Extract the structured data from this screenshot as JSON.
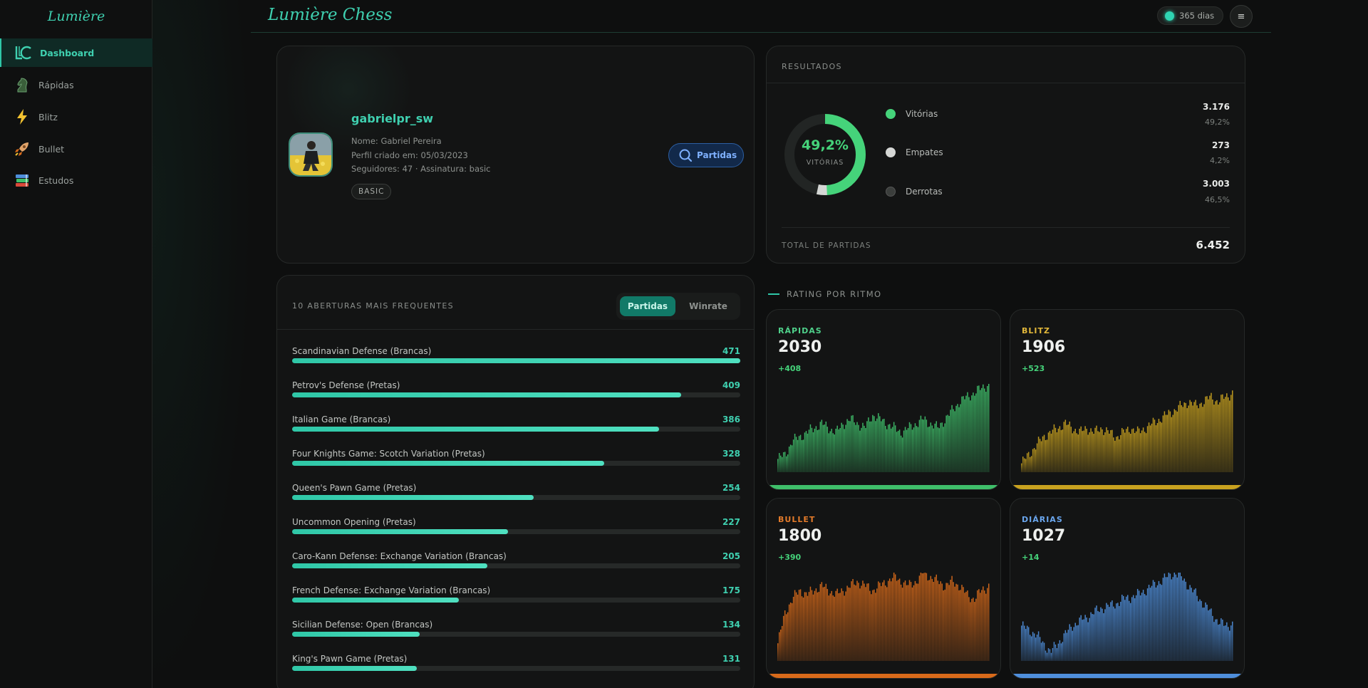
{
  "sidebar": {
    "logo": "Lumière",
    "items": [
      {
        "label": "Dashboard",
        "icon": "lc-logo-icon",
        "active": true
      },
      {
        "label": "Rápidas",
        "icon": "knight-icon",
        "active": false
      },
      {
        "label": "Blitz",
        "icon": "lightning-icon",
        "active": false
      },
      {
        "label": "Bullet",
        "icon": "rocket-icon",
        "active": false
      },
      {
        "label": "Estudos",
        "icon": "books-icon",
        "active": false
      }
    ]
  },
  "header": {
    "title": "Lumière Chess",
    "days": "365 dias",
    "menu_icon": "≡"
  },
  "profile": {
    "username": "gabrielpr_sw",
    "name": "Nome: Gabriel Pereira",
    "created": "Perfil criado em: 05/03/2023",
    "followers": "Seguidores: 47 · Assinatura: basic",
    "badge": "BASIC",
    "button": "Partidas"
  },
  "results": {
    "title": "RESULTADOS",
    "donut_pct": "49,2%",
    "donut_label": "VITÓRIAS",
    "items": [
      {
        "label": "Vitórias",
        "value": "3.176",
        "pct": "49,2%",
        "share": 0.492,
        "color": "#45d37a"
      },
      {
        "label": "Empates",
        "value": "273",
        "pct": "4,2%",
        "share": 0.042,
        "color": "#d5d7d5"
      },
      {
        "label": "Derrotas",
        "value": "3.003",
        "pct": "46,5%",
        "share": 0.465,
        "color": "#3b3e3c"
      }
    ],
    "total_label": "TOTAL DE PARTIDAS",
    "total_value": "6.452"
  },
  "openings": {
    "title": "10 ABERTURAS MAIS FREQUENTES",
    "tab_active": "Partidas",
    "tab_inactive": "Winrate",
    "max": 471,
    "items": [
      {
        "name": "Scandinavian Defense (Brancas)",
        "count": 471
      },
      {
        "name": "Petrov's Defense (Pretas)",
        "count": 409
      },
      {
        "name": "Italian Game (Brancas)",
        "count": 386
      },
      {
        "name": "Four Knights Game: Scotch Variation (Pretas)",
        "count": 328
      },
      {
        "name": "Queen's Pawn Game (Pretas)",
        "count": 254
      },
      {
        "name": "Uncommon Opening (Pretas)",
        "count": 227
      },
      {
        "name": "Caro-Kann Defense: Exchange Variation (Brancas)",
        "count": 205
      },
      {
        "name": "French Defense: Exchange Variation (Brancas)",
        "count": 175
      },
      {
        "name": "Sicilian Defense: Open (Brancas)",
        "count": 134
      },
      {
        "name": "King's Pawn Game (Pretas)",
        "count": 131
      }
    ]
  },
  "ratings": {
    "section_title": "RATING POR RITMO",
    "cards": [
      {
        "name": "RÁPIDAS",
        "rating": "2030",
        "delta": "+408",
        "color": "#3fbf6a",
        "trend": [
          0.15,
          0.2,
          0.35,
          0.4,
          0.45,
          0.5,
          0.55,
          0.5,
          0.45,
          0.55,
          0.6,
          0.55,
          0.5,
          0.65,
          0.6,
          0.55,
          0.5,
          0.45,
          0.5,
          0.55,
          0.6,
          0.55,
          0.5,
          0.6,
          0.7,
          0.8,
          0.85,
          0.9,
          0.95,
          1.0
        ]
      },
      {
        "name": "BLITZ",
        "rating": "1906",
        "delta": "+523",
        "color": "#c9a21f",
        "trend": [
          0.1,
          0.2,
          0.3,
          0.4,
          0.45,
          0.5,
          0.55,
          0.5,
          0.45,
          0.5,
          0.45,
          0.5,
          0.45,
          0.4,
          0.45,
          0.5,
          0.45,
          0.5,
          0.55,
          0.6,
          0.65,
          0.7,
          0.75,
          0.8,
          0.75,
          0.8,
          0.85,
          0.8,
          0.85,
          0.9
        ]
      },
      {
        "name": "BULLET",
        "rating": "1800",
        "delta": "+390",
        "color": "#d86a1a",
        "trend": [
          0.2,
          0.55,
          0.7,
          0.8,
          0.75,
          0.8,
          0.85,
          0.8,
          0.75,
          0.8,
          0.85,
          0.9,
          0.85,
          0.8,
          0.85,
          0.9,
          0.95,
          0.9,
          0.85,
          0.9,
          1.0,
          0.95,
          0.9,
          0.85,
          0.9,
          0.85,
          0.75,
          0.7,
          0.8,
          0.85
        ]
      },
      {
        "name": "DIÁRIAS",
        "rating": "1027",
        "delta": "+14",
        "color": "#4f8fdc",
        "trend": [
          0.4,
          0.35,
          0.3,
          0.2,
          0.1,
          0.2,
          0.3,
          0.4,
          0.45,
          0.5,
          0.55,
          0.6,
          0.62,
          0.65,
          0.7,
          0.72,
          0.75,
          0.8,
          0.85,
          0.9,
          0.95,
          1.0,
          0.95,
          0.85,
          0.75,
          0.65,
          0.55,
          0.45,
          0.4,
          0.42
        ]
      }
    ]
  }
}
